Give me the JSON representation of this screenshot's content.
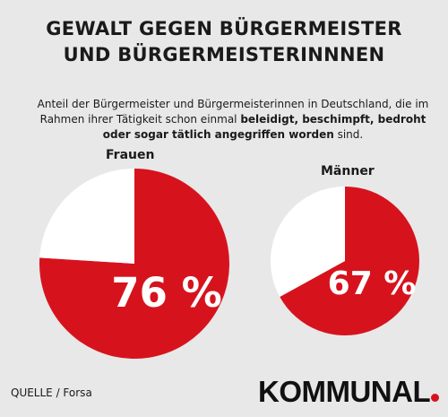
{
  "title": {
    "line1": "GEWALT GEGEN BÜRGERMEISTER",
    "line2": "UND BÜRGERMEISTERINNNEN"
  },
  "subtitle": {
    "part1": "Anteil der Bürgermeister und Bürgermeisterinnen in Deutschland, die im Rahmen ihrer Tätigkeit schon einmal ",
    "bold": "beleidigt, beschimpft, bedroht oder sogar tätlich angegriffen worden",
    "part2": " sind."
  },
  "source": "QUELLE / Forsa",
  "brand": "KOMMUNAL",
  "colors": {
    "accent": "#d6131d",
    "remainder": "#ffffff",
    "background": "#e8e8e8"
  },
  "chart_data": [
    {
      "type": "pie",
      "title": "Frauen",
      "value": 76,
      "label": "76 %",
      "slices": [
        {
          "name": "angegriffen",
          "value": 76,
          "color": "#d6131d"
        },
        {
          "name": "rest",
          "value": 24,
          "color": "#ffffff"
        }
      ]
    },
    {
      "type": "pie",
      "title": "Männer",
      "value": 67,
      "label": "67 %",
      "slices": [
        {
          "name": "angegriffen",
          "value": 67,
          "color": "#d6131d"
        },
        {
          "name": "rest",
          "value": 33,
          "color": "#ffffff"
        }
      ]
    }
  ]
}
